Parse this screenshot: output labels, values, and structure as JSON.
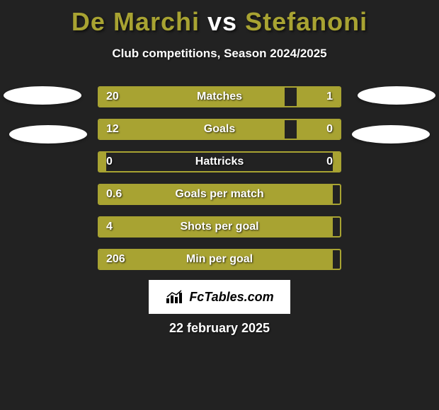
{
  "title": {
    "player1": "De Marchi",
    "vs": "vs",
    "player2": "Stefanoni",
    "color_player": "#a8a332",
    "color_vs": "#ffffff",
    "fontsize": 36
  },
  "subtitle": "Club competitions, Season 2024/2025",
  "background_color": "#222222",
  "bar_color": "#a8a332",
  "text_color": "#ffffff",
  "bars": [
    {
      "label": "Matches",
      "left_val": "20",
      "right_val": "1",
      "left_pct": 77,
      "right_pct": 18
    },
    {
      "label": "Goals",
      "left_val": "12",
      "right_val": "0",
      "left_pct": 77,
      "right_pct": 18
    },
    {
      "label": "Hattricks",
      "left_val": "0",
      "right_val": "0",
      "left_pct": 3,
      "right_pct": 3
    },
    {
      "label": "Goals per match",
      "left_val": "0.6",
      "right_val": "",
      "left_pct": 97,
      "right_pct": 0
    },
    {
      "label": "Shots per goal",
      "left_val": "4",
      "right_val": "",
      "left_pct": 97,
      "right_pct": 0
    },
    {
      "label": "Min per goal",
      "left_val": "206",
      "right_val": "",
      "left_pct": 97,
      "right_pct": 0
    }
  ],
  "logo_text": "FcTables.com",
  "date": "22 february 2025"
}
